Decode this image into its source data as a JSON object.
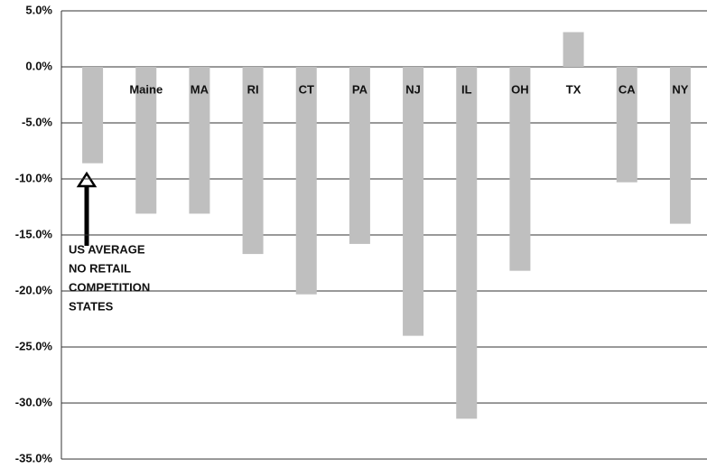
{
  "chart_data": {
    "type": "bar",
    "categories": [
      null,
      "Maine",
      "MA",
      "RI",
      "CT",
      "PA",
      "NJ",
      "IL",
      "OH",
      "TX",
      "CA",
      "NY"
    ],
    "values": [
      -8.6,
      -13.1,
      -13.1,
      -16.7,
      -20.3,
      -15.8,
      -24.0,
      -31.4,
      -18.2,
      3.1,
      -10.3,
      -14.0
    ],
    "color": "#bfbfbf",
    "ylim": [
      -35,
      5
    ],
    "yticks": [
      {
        "value": 5,
        "label": "5.0%"
      },
      {
        "value": 0,
        "label": "0.0%"
      },
      {
        "value": -5,
        "label": "-5.0%"
      },
      {
        "value": -10,
        "label": "-10.0%"
      },
      {
        "value": -15,
        "label": "-15.0%"
      },
      {
        "value": -20,
        "label": "-20.0%"
      },
      {
        "value": -25,
        "label": "-25.0%"
      },
      {
        "value": -30,
        "label": "-30.0%"
      },
      {
        "value": -35,
        "label": "-35.0%"
      }
    ],
    "grid": true,
    "annotation": [
      "US AVERAGE",
      "NO RETAIL",
      "COMPETITION",
      "STATES"
    ]
  }
}
